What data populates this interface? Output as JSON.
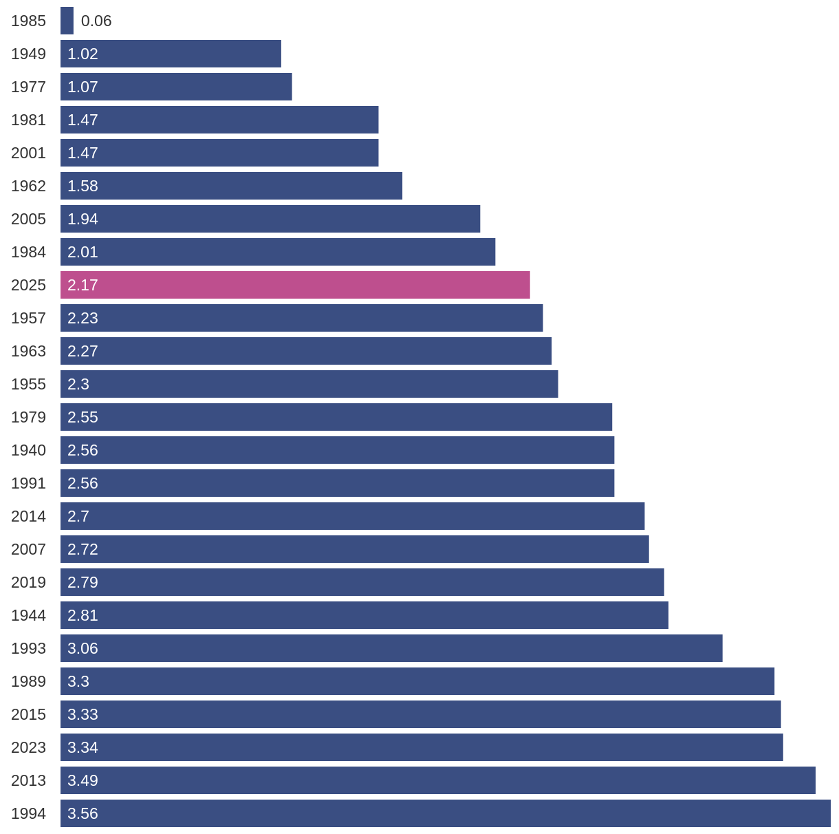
{
  "chart_data": {
    "type": "bar",
    "orientation": "horizontal",
    "title": "",
    "xlabel": "",
    "ylabel": "",
    "grid": false,
    "xlim": [
      0,
      3.56
    ],
    "categories": [
      "1985",
      "1949",
      "1977",
      "1981",
      "2001",
      "1962",
      "2005",
      "1984",
      "2025",
      "1957",
      "1963",
      "1955",
      "1979",
      "1940",
      "1991",
      "2014",
      "2007",
      "2019",
      "1944",
      "1993",
      "1989",
      "2015",
      "2023",
      "2013",
      "1994"
    ],
    "values": [
      0.06,
      1.02,
      1.07,
      1.47,
      1.47,
      1.58,
      1.94,
      2.01,
      2.17,
      2.23,
      2.27,
      2.3,
      2.55,
      2.56,
      2.56,
      2.7,
      2.72,
      2.79,
      2.81,
      3.06,
      3.3,
      3.33,
      3.34,
      3.49,
      3.56
    ],
    "value_labels": [
      "0.06",
      "1.02",
      "1.07",
      "1.47",
      "1.47",
      "1.58",
      "1.94",
      "2.01",
      "2.17",
      "2.23",
      "2.27",
      "2.3",
      "2.55",
      "2.56",
      "2.56",
      "2.7",
      "2.72",
      "2.79",
      "2.81",
      "3.06",
      "3.3",
      "3.33",
      "3.34",
      "3.49",
      "3.56"
    ],
    "highlight_category": "2025",
    "colors": {
      "bar": "#3a4e82",
      "highlight": "#be4f8e",
      "label_inside": "#ffffff",
      "label_outside": "#333333",
      "category_label": "#333333"
    }
  }
}
